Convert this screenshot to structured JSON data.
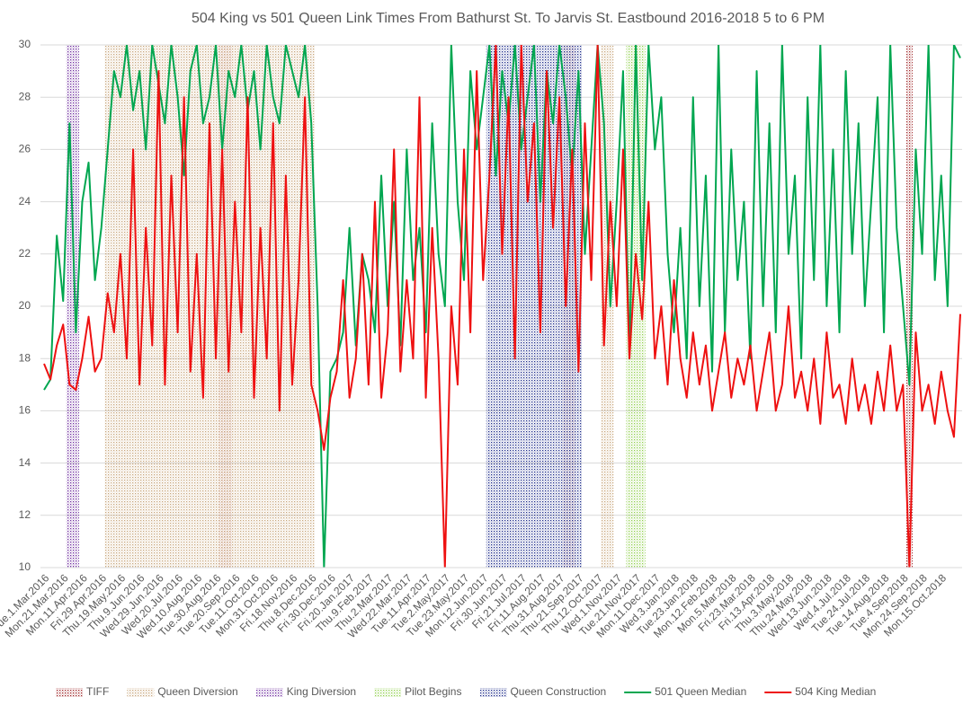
{
  "chart_data": {
    "type": "line",
    "title": "504 King vs 501 Queen Link Times From Bathurst St. To Jarvis St. Eastbound 2016-2018 5 to 6 PM",
    "categories": [
      "Tue.1.Mar.2016",
      null,
      null,
      "Mon.21.Mar.2016",
      null,
      null,
      "Mon.11.Apr.2016",
      null,
      null,
      "Fri.29.Apr.2016",
      null,
      null,
      "Thu.19.May.2016",
      null,
      null,
      "Thu.9.Jun.2016",
      null,
      null,
      "Wed.29.Jun.2016",
      null,
      null,
      "Wed.20.Jul.2016",
      null,
      null,
      "Wed.10.Aug.2016",
      null,
      null,
      "Tue.30.Aug.2016",
      null,
      null,
      "Tue.20.Sep.2016",
      null,
      null,
      "Tue.11.Oct.2016",
      null,
      null,
      "Mon.31.Oct.2016",
      null,
      null,
      "Fri.18.Nov.2016",
      null,
      null,
      "Thu.8.Dec.2016",
      null,
      null,
      "Fri.30.Dec.2016",
      null,
      null,
      "Fri.20.Jan.2017",
      null,
      null,
      "Thu.9.Feb.2017",
      null,
      null,
      "Thu.2.Mar.2017",
      null,
      null,
      "Wed.22.Mar.2017",
      null,
      null,
      "Tue.11.Apr.2017",
      null,
      null,
      "Tue.2.May.2017",
      null,
      null,
      "Tue.23.May.2017",
      null,
      null,
      "Mon.12.Jun.2017",
      null,
      null,
      "Fri.30.Jun.2017",
      null,
      null,
      "Fri.21.Jul.2017",
      null,
      null,
      "Fri.11.Aug.2017",
      null,
      null,
      "Thu.31.Aug.2017",
      null,
      null,
      "Thu.21.Sep.2017",
      null,
      null,
      "Thu.12.Oct.2017",
      null,
      null,
      "Wed.1.Nov.2017",
      null,
      null,
      "Tue.21.Nov.2017",
      null,
      null,
      "Mon.11.Dec.2017",
      null,
      null,
      "Wed.3.Jan.2018",
      null,
      null,
      "Tue.23.Jan.2018",
      null,
      null,
      "Mon.12.Feb.2018",
      null,
      null,
      "Mon.5.Mar.2018",
      null,
      null,
      "Fri.23.Mar.2018",
      null,
      null,
      "Fri.13.Apr.2018",
      null,
      null,
      "Thu.3.May.2018",
      null,
      null,
      "Thu.24.May.2018",
      null,
      null,
      "Wed.13.Jun.2018",
      null,
      null,
      "Wed.4.Jul.2018",
      null,
      null,
      "Tue.24.Jul.2018",
      null,
      null,
      "Tue.14.Aug.2018",
      null,
      null,
      "Tue.4.Sep.2018",
      null,
      null,
      "Mon.24.Sep.2018",
      null,
      null,
      "Mon.15.Oct.2018",
      null,
      null,
      null
    ],
    "ylim": [
      10,
      30
    ],
    "yticks": [
      10,
      12,
      14,
      16,
      18,
      20,
      22,
      24,
      26,
      28,
      30
    ],
    "grid": true,
    "legend": "bottom",
    "series": [
      {
        "name": "TIFF",
        "type": "bar",
        "color": "#a0282a",
        "values": [
          null,
          null,
          null,
          null,
          null,
          null,
          null,
          null,
          null,
          null,
          null,
          null,
          null,
          null,
          null,
          null,
          null,
          null,
          null,
          null,
          null,
          null,
          null,
          null,
          null,
          null,
          null,
          null,
          30,
          30,
          null,
          null,
          null,
          null,
          null,
          null,
          null,
          null,
          null,
          null,
          null,
          null,
          null,
          null,
          null,
          null,
          null,
          null,
          null,
          null,
          null,
          null,
          null,
          null,
          null,
          null,
          null,
          null,
          null,
          null,
          null,
          null,
          null,
          null,
          null,
          null,
          null,
          null,
          null,
          null,
          null,
          null,
          null,
          null,
          null,
          null,
          null,
          null,
          null,
          null,
          null,
          null,
          30,
          30,
          null,
          null,
          null,
          null,
          null,
          null,
          null,
          null,
          null,
          null,
          null,
          null,
          null,
          null,
          null,
          null,
          null,
          null,
          null,
          null,
          null,
          null,
          null,
          null,
          null,
          null,
          null,
          null,
          null,
          null,
          null,
          null,
          null,
          null,
          null,
          null,
          null,
          null,
          null,
          null,
          null,
          null,
          null,
          null,
          null,
          null,
          null,
          null,
          null,
          null,
          null,
          null,
          30,
          null,
          null,
          null,
          null,
          null,
          null,
          null,
          null
        ]
      },
      {
        "name": "Queen Diversion",
        "type": "bar",
        "color": "#c9a77c",
        "values": [
          null,
          null,
          null,
          null,
          null,
          null,
          null,
          null,
          null,
          null,
          30,
          30,
          30,
          30,
          30,
          30,
          30,
          30,
          30,
          30,
          30,
          30,
          30,
          30,
          30,
          30,
          30,
          30,
          30,
          30,
          30,
          30,
          30,
          30,
          30,
          30,
          30,
          30,
          30,
          30,
          30,
          30,
          30,
          null,
          null,
          null,
          null,
          null,
          null,
          null,
          null,
          null,
          null,
          null,
          null,
          null,
          null,
          null,
          null,
          null,
          null,
          null,
          null,
          null,
          null,
          null,
          null,
          null,
          null,
          null,
          null,
          null,
          null,
          null,
          null,
          null,
          null,
          null,
          null,
          null,
          null,
          null,
          null,
          null,
          null,
          null,
          null,
          null,
          30,
          30,
          null,
          null,
          null,
          null,
          null,
          null,
          null,
          null,
          null,
          null,
          null,
          null,
          null,
          null,
          null,
          null,
          null,
          null,
          null,
          null,
          null,
          null,
          null,
          null,
          null,
          null,
          null,
          null,
          null,
          null,
          null,
          null,
          null,
          null,
          null,
          null,
          null,
          null,
          null,
          null,
          null,
          null,
          null,
          null,
          null,
          null,
          null,
          null,
          null,
          null,
          null,
          null,
          null,
          null,
          null
        ]
      },
      {
        "name": "King Diversion",
        "type": "bar",
        "color": "#7030a0",
        "values": [
          null,
          null,
          null,
          null,
          30,
          30,
          null,
          null,
          null,
          null,
          null,
          null,
          null,
          null,
          null,
          null,
          null,
          null,
          null,
          null,
          null,
          null,
          null,
          null,
          null,
          null,
          null,
          null,
          null,
          null,
          null,
          null,
          null,
          null,
          null,
          null,
          null,
          null,
          null,
          null,
          null,
          null,
          null,
          null,
          null,
          null,
          null,
          null,
          null,
          null,
          null,
          null,
          null,
          null,
          null,
          null,
          null,
          null,
          null,
          null,
          null,
          null,
          null,
          null,
          null,
          null,
          null,
          null,
          null,
          null,
          null,
          null,
          null,
          null,
          null,
          null,
          null,
          null,
          null,
          null,
          null,
          null,
          null,
          null,
          null,
          null,
          null,
          null,
          null,
          null,
          null,
          null,
          null,
          null,
          null,
          null,
          null,
          null,
          null,
          null,
          null,
          null,
          null,
          null,
          null,
          null,
          null,
          null,
          null,
          null,
          null,
          null,
          null,
          null,
          null,
          null,
          null,
          null,
          null,
          null,
          null,
          null,
          null,
          null,
          null,
          null,
          null,
          null,
          null,
          null,
          null,
          null,
          null,
          null,
          null,
          null,
          null,
          null,
          null,
          null,
          null,
          null,
          null,
          null,
          null
        ]
      },
      {
        "name": "Pilot Begins",
        "type": "bar",
        "color": "#92d050",
        "values": [
          null,
          null,
          null,
          null,
          null,
          null,
          null,
          null,
          null,
          null,
          null,
          null,
          null,
          null,
          null,
          null,
          null,
          null,
          null,
          null,
          null,
          null,
          null,
          null,
          null,
          null,
          null,
          null,
          null,
          null,
          null,
          null,
          null,
          null,
          null,
          null,
          null,
          null,
          null,
          null,
          null,
          null,
          null,
          null,
          null,
          null,
          null,
          null,
          null,
          null,
          null,
          null,
          null,
          null,
          null,
          null,
          null,
          null,
          null,
          null,
          null,
          null,
          null,
          null,
          null,
          null,
          null,
          null,
          null,
          null,
          null,
          null,
          null,
          null,
          null,
          null,
          null,
          null,
          null,
          null,
          null,
          null,
          null,
          null,
          null,
          null,
          null,
          null,
          null,
          null,
          null,
          null,
          30,
          30,
          30,
          null,
          null,
          null,
          null,
          null,
          null,
          null,
          null,
          null,
          null,
          null,
          null,
          null,
          null,
          null,
          null,
          null,
          null,
          null,
          null,
          null,
          null,
          null,
          null,
          null,
          null,
          null,
          null,
          null,
          null,
          null,
          null,
          null,
          null,
          null,
          null,
          null,
          null,
          null,
          null,
          null,
          null,
          null,
          null,
          null,
          null,
          null,
          null,
          null,
          null
        ]
      },
      {
        "name": "Queen Construction",
        "type": "bar",
        "color": "#1f2e8c",
        "values": [
          null,
          null,
          null,
          null,
          null,
          null,
          null,
          null,
          null,
          null,
          null,
          null,
          null,
          null,
          null,
          null,
          null,
          null,
          null,
          null,
          null,
          null,
          null,
          null,
          null,
          null,
          null,
          null,
          null,
          null,
          null,
          null,
          null,
          null,
          null,
          null,
          null,
          null,
          null,
          null,
          null,
          null,
          null,
          null,
          null,
          null,
          null,
          null,
          null,
          null,
          null,
          null,
          null,
          null,
          null,
          null,
          null,
          null,
          null,
          null,
          null,
          null,
          null,
          null,
          null,
          null,
          null,
          null,
          null,
          null,
          30,
          30,
          30,
          30,
          30,
          30,
          30,
          30,
          30,
          30,
          30,
          30,
          30,
          30,
          30,
          null,
          null,
          null,
          null,
          null,
          null,
          null,
          null,
          null,
          null,
          null,
          null,
          null,
          null,
          null,
          null,
          null,
          null,
          null,
          null,
          null,
          null,
          null,
          null,
          null,
          null,
          null,
          null,
          null,
          null,
          null,
          null,
          null,
          null,
          null,
          null,
          null,
          null,
          null,
          null,
          null,
          null,
          null,
          null,
          null,
          null,
          null,
          null,
          null,
          null,
          null,
          null,
          null,
          null,
          null,
          null,
          null,
          null,
          null,
          null
        ]
      },
      {
        "name": "501 Queen Median",
        "type": "line",
        "color": "#00a650",
        "values": [
          16.8,
          17.2,
          22.7,
          20.2,
          27,
          19,
          24,
          25.5,
          21,
          23,
          26,
          29,
          28,
          30,
          27.5,
          29,
          26,
          30,
          28.5,
          27,
          30,
          28,
          25,
          29,
          30,
          27,
          28,
          30,
          26,
          29,
          28,
          30,
          27.5,
          29,
          26,
          30,
          28,
          27,
          30,
          29,
          28,
          30,
          27,
          20,
          10,
          17.5,
          18,
          19,
          23,
          18.5,
          22,
          21,
          19,
          25,
          20,
          24,
          18.5,
          26,
          21,
          23,
          19,
          27,
          22,
          20,
          30,
          24,
          21,
          29,
          26,
          28,
          30,
          25,
          29,
          27,
          30,
          26,
          28,
          30,
          24,
          29,
          27,
          30,
          28,
          25,
          29,
          22,
          26,
          30,
          27,
          20,
          24,
          29,
          18,
          30,
          21,
          30,
          26,
          28,
          22,
          19,
          23,
          18,
          28,
          20,
          25,
          17.5,
          30,
          19,
          26,
          21,
          24,
          18,
          29,
          20,
          27,
          19,
          30,
          22,
          25,
          18,
          28,
          21,
          30,
          20,
          26,
          19,
          29,
          22,
          27,
          20,
          24,
          28,
          19,
          30,
          23,
          20,
          17,
          26,
          22,
          30,
          21,
          25,
          20,
          30,
          29.5
        ]
      },
      {
        "name": "504 King Median",
        "type": "line",
        "color": "#ee1111",
        "values": [
          17.8,
          17.2,
          18.5,
          19.3,
          17,
          16.8,
          18,
          19.6,
          17.5,
          18,
          20.5,
          19,
          22,
          18,
          26,
          17,
          23,
          18.5,
          29,
          17,
          25,
          19,
          28,
          17.5,
          22,
          16.5,
          27,
          18,
          26,
          17.5,
          24,
          19,
          28,
          16.5,
          23,
          18,
          27,
          16,
          25,
          17,
          21,
          28,
          17,
          16,
          14.5,
          16.5,
          17.5,
          21,
          16.5,
          18,
          22,
          17,
          24,
          16.5,
          19,
          26,
          17.5,
          21,
          18,
          28,
          16.5,
          23,
          18,
          10,
          20,
          17,
          26,
          19,
          29,
          21,
          25,
          30,
          22,
          28,
          18,
          30,
          24,
          27,
          19,
          29,
          23,
          28,
          20,
          26,
          17.5,
          27,
          21,
          30,
          18.5,
          24,
          20,
          26,
          18,
          22,
          19.5,
          24,
          18,
          20,
          17,
          21,
          18,
          16.5,
          19,
          17,
          18.5,
          16,
          17.5,
          19,
          16.5,
          18,
          17,
          18.5,
          16,
          17.5,
          19,
          16,
          17,
          20,
          16.5,
          17.5,
          16,
          18,
          15.5,
          19,
          16.5,
          17,
          15.5,
          18,
          16,
          17,
          15.5,
          17.5,
          16,
          18.5,
          16,
          17,
          10,
          19,
          16,
          17,
          15.5,
          17.5,
          16,
          15,
          19.7
        ]
      }
    ]
  }
}
